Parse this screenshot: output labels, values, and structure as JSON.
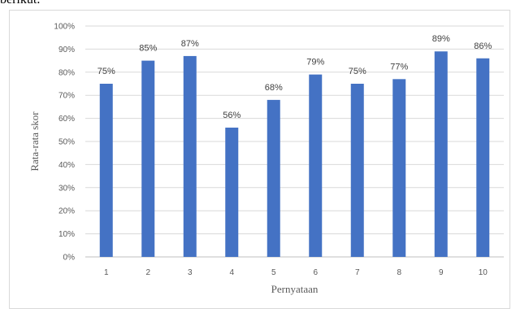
{
  "page": {
    "caption_fragment": "berikut."
  },
  "colors": {
    "bar": "#4472c4",
    "grid": "#d9d9d9",
    "text": "#595959"
  },
  "chart_data": {
    "type": "bar",
    "title": "",
    "xlabel": "Pernyataan",
    "ylabel": "Rata-rata skor",
    "categories": [
      "1",
      "2",
      "3",
      "4",
      "5",
      "6",
      "7",
      "8",
      "9",
      "10"
    ],
    "values": [
      75,
      85,
      87,
      56,
      68,
      79,
      75,
      77,
      89,
      86
    ],
    "data_labels": [
      "75%",
      "85%",
      "87%",
      "56%",
      "68%",
      "79%",
      "75%",
      "77%",
      "89%",
      "86%"
    ],
    "ylim": [
      0,
      100
    ],
    "yticks": [
      0,
      10,
      20,
      30,
      40,
      50,
      60,
      70,
      80,
      90,
      100
    ],
    "ytick_labels": [
      "0%",
      "10%",
      "20%",
      "30%",
      "40%",
      "50%",
      "60%",
      "70%",
      "80%",
      "90%",
      "100%"
    ],
    "grid": true,
    "legend": "none"
  }
}
